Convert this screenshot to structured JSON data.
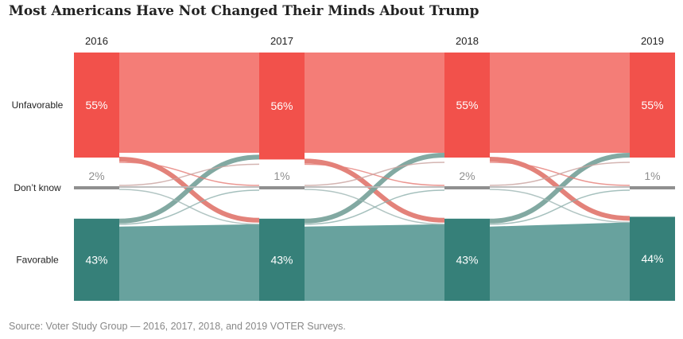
{
  "title": "Most Americans Have Not Changed Their Minds About Trump",
  "source": "Source: Voter Study Group — 2016, 2017, 2018, and 2019 VOTER Surveys.",
  "colors": {
    "unfavorable": "#f2514b",
    "unfavorable_flow": "#f47d77",
    "dont_know": "#8f8f8f",
    "favorable": "#368079",
    "favorable_flow": "#68a29e"
  },
  "chart_data": {
    "type": "sankey",
    "years": [
      "2016",
      "2017",
      "2018",
      "2019"
    ],
    "categories": [
      "Unfavorable",
      "Don’t know",
      "Favorable"
    ],
    "node_labels": [
      [
        "55%",
        "2%",
        "43%"
      ],
      [
        "56%",
        "1%",
        "43%"
      ],
      [
        "55%",
        "2%",
        "43%"
      ],
      [
        "55%",
        "1%",
        "44%"
      ]
    ],
    "values": [
      [
        55,
        2,
        43
      ],
      [
        56,
        1,
        43
      ],
      [
        55,
        2,
        43
      ],
      [
        55,
        1,
        44
      ]
    ]
  }
}
